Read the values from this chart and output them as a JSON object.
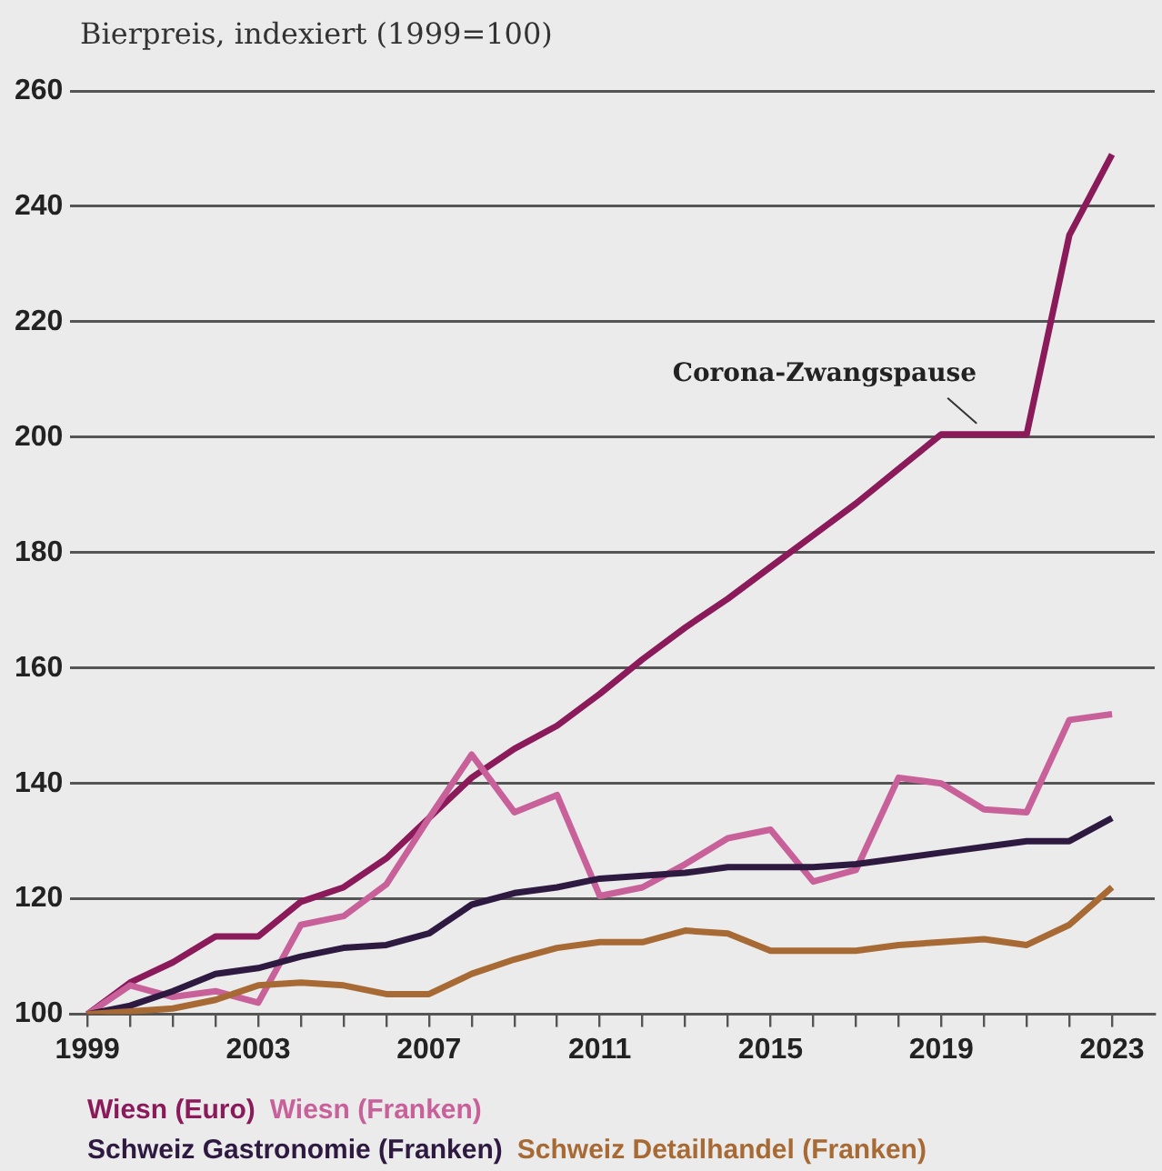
{
  "chart_data": {
    "type": "line",
    "ylabel": "Bierpreis, indexiert (1999=100)",
    "x": [
      1999,
      2000,
      2001,
      2002,
      2003,
      2004,
      2005,
      2006,
      2007,
      2008,
      2009,
      2010,
      2011,
      2012,
      2013,
      2014,
      2015,
      2016,
      2017,
      2018,
      2019,
      2020,
      2021,
      2022,
      2023
    ],
    "series": [
      {
        "name": "Wiesn (Euro)",
        "color": "#8b1a5a",
        "values": [
          100,
          105.5,
          109,
          113.5,
          113.5,
          119.5,
          122,
          127,
          134,
          141,
          146,
          150,
          155.5,
          161.5,
          167,
          172,
          177.5,
          183,
          188.5,
          194.5,
          200.5,
          200.5,
          200.5,
          235,
          249
        ]
      },
      {
        "name": "Wiesn (Franken)",
        "color": "#c8609a",
        "values": [
          100,
          105,
          103,
          104,
          102,
          115.5,
          117,
          122.5,
          134,
          145,
          135,
          138,
          120.5,
          122,
          126,
          130.5,
          132,
          123,
          125,
          141,
          140,
          135.5,
          135,
          151,
          152
        ]
      },
      {
        "name": "Schweiz Gastronomie (Franken)",
        "color": "#2e1a40",
        "values": [
          100,
          101.5,
          104,
          107,
          108,
          110,
          111.5,
          112,
          114,
          119,
          121,
          122,
          123.5,
          124,
          124.5,
          125.5,
          125.5,
          125.5,
          126,
          127,
          128,
          129,
          130,
          130,
          134
        ]
      },
      {
        "name": "Schweiz Detailhandel (Franken)",
        "color": "#a86a35",
        "values": [
          100,
          100.5,
          101,
          102.5,
          105,
          105.5,
          105,
          103.5,
          103.5,
          107,
          109.5,
          111.5,
          112.5,
          112.5,
          114.5,
          114,
          111,
          111,
          111,
          112,
          112.5,
          113,
          112,
          115.5,
          122
        ]
      }
    ],
    "xlim": [
      1998.6,
      2024
    ],
    "xticks": [
      1999,
      {
        "value": 2000,
        "label": null
      },
      {
        "value": 2001,
        "label": null
      },
      {
        "value": 2002,
        "label": null
      },
      2003,
      {
        "value": 2004,
        "label": null
      },
      {
        "value": 2005,
        "label": null
      },
      {
        "value": 2006,
        "label": null
      },
      2007,
      {
        "value": 2008,
        "label": null
      },
      {
        "value": 2009,
        "label": null
      },
      {
        "value": 2010,
        "label": null
      },
      2011,
      {
        "value": 2012,
        "label": null
      },
      {
        "value": 2013,
        "label": null
      },
      {
        "value": 2014,
        "label": null
      },
      2015,
      {
        "value": 2016,
        "label": null
      },
      {
        "value": 2017,
        "label": null
      },
      {
        "value": 2018,
        "label": null
      },
      2019,
      {
        "value": 2020,
        "label": null
      },
      {
        "value": 2021,
        "label": null
      },
      {
        "value": 2022,
        "label": null
      },
      2023
    ],
    "ylim": [
      100,
      260
    ],
    "yticks": [
      100,
      120,
      140,
      160,
      180,
      200,
      220,
      240,
      260
    ],
    "annotations": [
      {
        "text": "Corona-Zwangspause",
        "x": 2020,
        "y": 200.5
      }
    ],
    "grid": "y",
    "legend": "bottom",
    "marker": "none",
    "line_style": "solid"
  }
}
